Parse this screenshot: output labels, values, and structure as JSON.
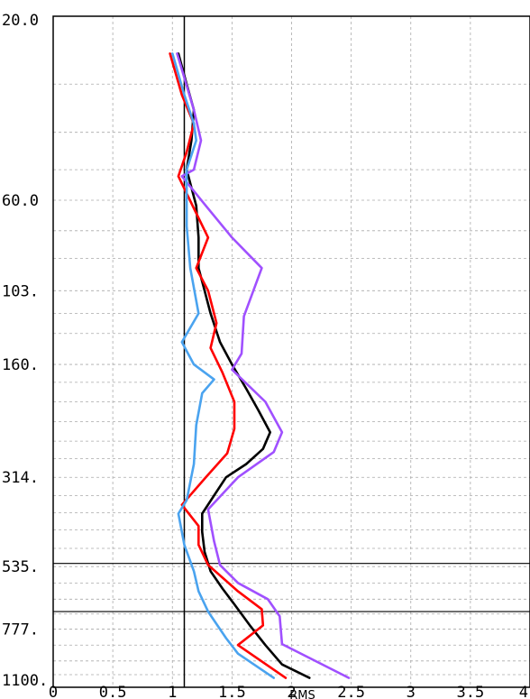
{
  "chart_data": {
    "type": "line",
    "title": "",
    "xlabel": "RMS",
    "ylabel": "",
    "xlim": [
      0,
      4
    ],
    "y_scale": "log",
    "y_inverted": true,
    "ylim": [
      20,
      1100
    ],
    "grid": true,
    "x_ticks": [
      {
        "value": 0,
        "label": "0"
      },
      {
        "value": 0.5,
        "label": "0.5"
      },
      {
        "value": 1,
        "label": "1"
      },
      {
        "value": 1.5,
        "label": "1.5"
      },
      {
        "value": 2,
        "label": "2"
      },
      {
        "value": 2.5,
        "label": "2.5"
      },
      {
        "value": 3,
        "label": "3"
      },
      {
        "value": 3.5,
        "label": "3.5"
      },
      {
        "value": 4,
        "label": "4"
      }
    ],
    "y_ticks": [
      {
        "value": 20,
        "label": "20.0"
      },
      {
        "value": 60,
        "label": "60.0"
      },
      {
        "value": 103,
        "label": "103."
      },
      {
        "value": 160,
        "label": "160."
      },
      {
        "value": 314,
        "label": "314."
      },
      {
        "value": 535,
        "label": "535."
      },
      {
        "value": 777,
        "label": "777."
      },
      {
        "value": 1100,
        "label": "1100."
      }
    ],
    "y_minor_grid": [
      30,
      40,
      50,
      72,
      85,
      118,
      133,
      178,
      200,
      225,
      253,
      281,
      350,
      388,
      430,
      480,
      590,
      650,
      710,
      855,
      940,
      1020
    ],
    "reference_lines": {
      "vertical_x": [
        1.1
      ],
      "horizontal_y": [
        525,
        700
      ]
    },
    "series": [
      {
        "color": "#000000",
        "points": [
          [
            1.05,
            25
          ],
          [
            1.12,
            30
          ],
          [
            1.18,
            35
          ],
          [
            1.16,
            42
          ],
          [
            1.12,
            50
          ],
          [
            1.2,
            62
          ],
          [
            1.22,
            75
          ],
          [
            1.22,
            90
          ],
          [
            1.27,
            103
          ],
          [
            1.32,
            118
          ],
          [
            1.4,
            140
          ],
          [
            1.5,
            160
          ],
          [
            1.62,
            185
          ],
          [
            1.72,
            210
          ],
          [
            1.82,
            240
          ],
          [
            1.76,
            265
          ],
          [
            1.62,
            290
          ],
          [
            1.45,
            314
          ],
          [
            1.35,
            350
          ],
          [
            1.25,
            390
          ],
          [
            1.25,
            435
          ],
          [
            1.27,
            490
          ],
          [
            1.32,
            550
          ],
          [
            1.42,
            610
          ],
          [
            1.52,
            670
          ],
          [
            1.65,
            760
          ],
          [
            1.78,
            855
          ],
          [
            1.92,
            960
          ],
          [
            2.15,
            1040
          ]
        ]
      },
      {
        "color": "#ff0000",
        "points": [
          [
            0.98,
            25
          ],
          [
            1.08,
            32
          ],
          [
            1.18,
            38
          ],
          [
            1.12,
            45
          ],
          [
            1.05,
            52
          ],
          [
            1.18,
            63
          ],
          [
            1.3,
            75
          ],
          [
            1.2,
            90
          ],
          [
            1.3,
            103
          ],
          [
            1.37,
            125
          ],
          [
            1.32,
            145
          ],
          [
            1.42,
            168
          ],
          [
            1.52,
            200
          ],
          [
            1.52,
            235
          ],
          [
            1.46,
            272
          ],
          [
            1.28,
            314
          ],
          [
            1.08,
            370
          ],
          [
            1.22,
            420
          ],
          [
            1.22,
            470
          ],
          [
            1.3,
            530
          ],
          [
            1.55,
            620
          ],
          [
            1.75,
            690
          ],
          [
            1.76,
            760
          ],
          [
            1.55,
            855
          ],
          [
            1.95,
            1040
          ]
        ]
      },
      {
        "color": "#a050ff",
        "points": [
          [
            1.04,
            25
          ],
          [
            1.18,
            35
          ],
          [
            1.24,
            42
          ],
          [
            1.18,
            50
          ],
          [
            1.08,
            52
          ],
          [
            1.28,
            62
          ],
          [
            1.5,
            75
          ],
          [
            1.75,
            90
          ],
          [
            1.6,
            120
          ],
          [
            1.58,
            150
          ],
          [
            1.5,
            165
          ],
          [
            1.78,
            200
          ],
          [
            1.92,
            240
          ],
          [
            1.85,
            270
          ],
          [
            1.55,
            314
          ],
          [
            1.3,
            380
          ],
          [
            1.35,
            460
          ],
          [
            1.4,
            530
          ],
          [
            1.55,
            590
          ],
          [
            1.8,
            650
          ],
          [
            1.9,
            720
          ],
          [
            1.92,
            850
          ],
          [
            2.48,
            1040
          ]
        ]
      },
      {
        "color": "#4aa3ef",
        "points": [
          [
            1.0,
            25
          ],
          [
            1.1,
            32
          ],
          [
            1.18,
            38
          ],
          [
            1.2,
            42
          ],
          [
            1.12,
            50
          ],
          [
            1.12,
            70
          ],
          [
            1.15,
            90
          ],
          [
            1.22,
            118
          ],
          [
            1.08,
            140
          ],
          [
            1.18,
            160
          ],
          [
            1.35,
            175
          ],
          [
            1.25,
            190
          ],
          [
            1.2,
            230
          ],
          [
            1.18,
            290
          ],
          [
            1.12,
            360
          ],
          [
            1.05,
            390
          ],
          [
            1.1,
            470
          ],
          [
            1.18,
            550
          ],
          [
            1.22,
            620
          ],
          [
            1.3,
            700
          ],
          [
            1.45,
            820
          ],
          [
            1.55,
            900
          ],
          [
            1.85,
            1040
          ]
        ]
      }
    ]
  }
}
